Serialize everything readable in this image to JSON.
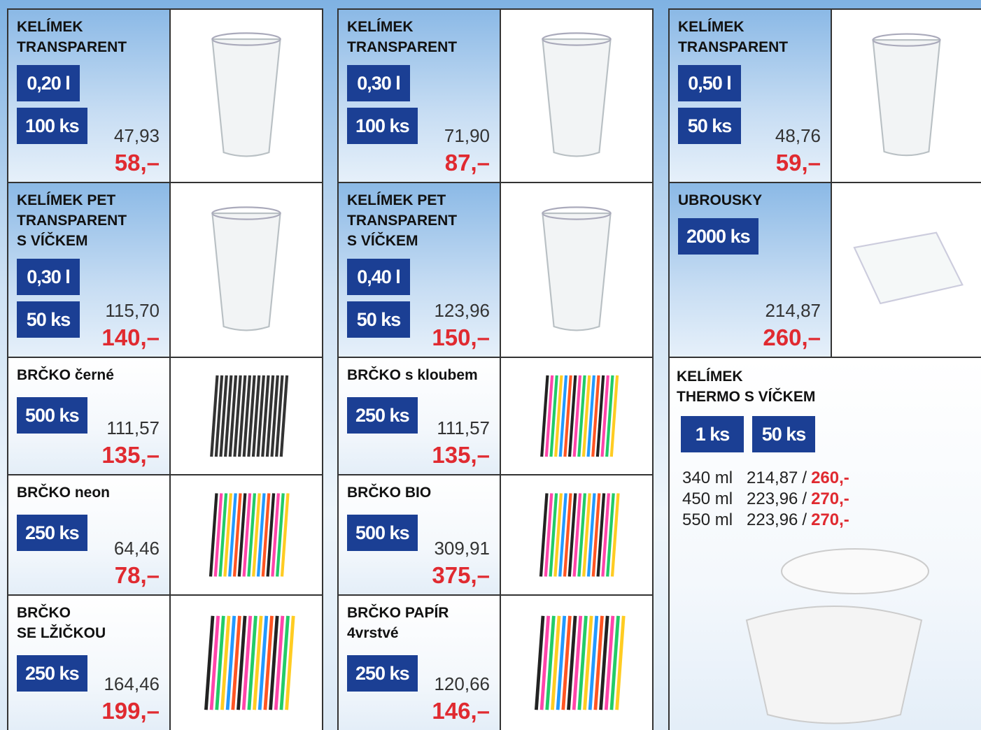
{
  "products": [
    {
      "name": [
        "KELÍMEK",
        "TRANSPARENT"
      ],
      "badges": [
        "0,20 l",
        "100 ks"
      ],
      "net": "47,93",
      "price": "58,–"
    },
    {
      "name": [
        "KELÍMEK PET",
        "TRANSPARENT",
        "S VÍČKEM"
      ],
      "badges": [
        "0,30 l",
        "50 ks"
      ],
      "net": "115,70",
      "price": "140,–"
    },
    {
      "name": [
        "BRČKO černé"
      ],
      "badges": [
        "500 ks"
      ],
      "net": "111,57",
      "price": "135,–"
    },
    {
      "name": [
        "BRČKO neon"
      ],
      "badges": [
        "250 ks"
      ],
      "net": "64,46",
      "price": "78,–"
    },
    {
      "name": [
        "BRČKO",
        "SE LŽIČKOU"
      ],
      "badges": [
        "250 ks"
      ],
      "net": "164,46",
      "price": "199,–"
    },
    {
      "name": [
        "KELÍMEK",
        "TRANSPARENT"
      ],
      "badges": [
        "0,30 l",
        "100 ks"
      ],
      "net": "71,90",
      "price": "87,–"
    },
    {
      "name": [
        "KELÍMEK PET",
        "TRANSPARENT",
        "S VÍČKEM"
      ],
      "badges": [
        "0,40 l",
        "50 ks"
      ],
      "net": "123,96",
      "price": "150,–"
    },
    {
      "name": [
        "BRČKO s kloubem"
      ],
      "badges": [
        "250 ks"
      ],
      "net": "111,57",
      "price": "135,–"
    },
    {
      "name": [
        "BRČKO BIO"
      ],
      "badges": [
        "500 ks"
      ],
      "net": "309,91",
      "price": "375,–"
    },
    {
      "name": [
        "BRČKO PAPÍR",
        "4vrstvé"
      ],
      "badges": [
        "250 ks"
      ],
      "net": "120,66",
      "price": "146,–"
    },
    {
      "name": [
        "KELÍMEK",
        "TRANSPARENT"
      ],
      "badges": [
        "0,50 l",
        "50 ks"
      ],
      "net": "48,76",
      "price": "59,–"
    },
    {
      "name": [
        "UBROUSKY"
      ],
      "badges": [
        "2000 ks"
      ],
      "net": "214,87",
      "price": "260,–"
    }
  ],
  "thermo": {
    "name": [
      "KELÍMEK",
      "THERMO S VÍČKEM"
    ],
    "badges": [
      "1 ks",
      "50 ks"
    ],
    "separator": "/",
    "variants": [
      {
        "size": "340 ml",
        "net": "214,87",
        "price": "260,-"
      },
      {
        "size": "450 ml",
        "net": "223,96",
        "price": "270,-"
      },
      {
        "size": "550 ml",
        "net": "223,96",
        "price": "270,-"
      }
    ]
  }
}
